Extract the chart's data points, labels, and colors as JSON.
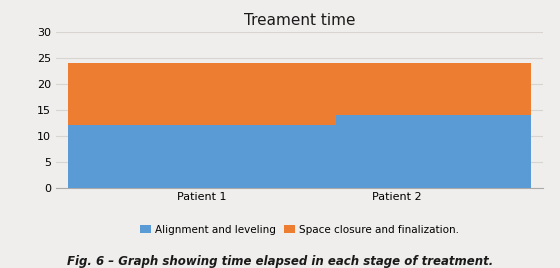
{
  "title": "Treament time",
  "categories": [
    "Patient 1",
    "Patient 2"
  ],
  "alignment_values": [
    12,
    14
  ],
  "space_closure_values": [
    12,
    10
  ],
  "alignment_color": "#5B9BD5",
  "space_closure_color": "#ED7D31",
  "legend_labels": [
    "Alignment and leveling",
    "Space closure and finalization."
  ],
  "ylim": [
    0,
    30
  ],
  "yticks": [
    0,
    5,
    10,
    15,
    20,
    25,
    30
  ],
  "caption": "Fig. 6 – Graph showing time elapsed in each stage of treatment.",
  "bar_width": 0.55,
  "title_fontsize": 11,
  "tick_fontsize": 8,
  "legend_fontsize": 7.5,
  "caption_fontsize": 8.5,
  "bg_color": "#F0EEEC",
  "plot_bg_color": "#F0EEEC",
  "grid_color": "#D8D5D0"
}
